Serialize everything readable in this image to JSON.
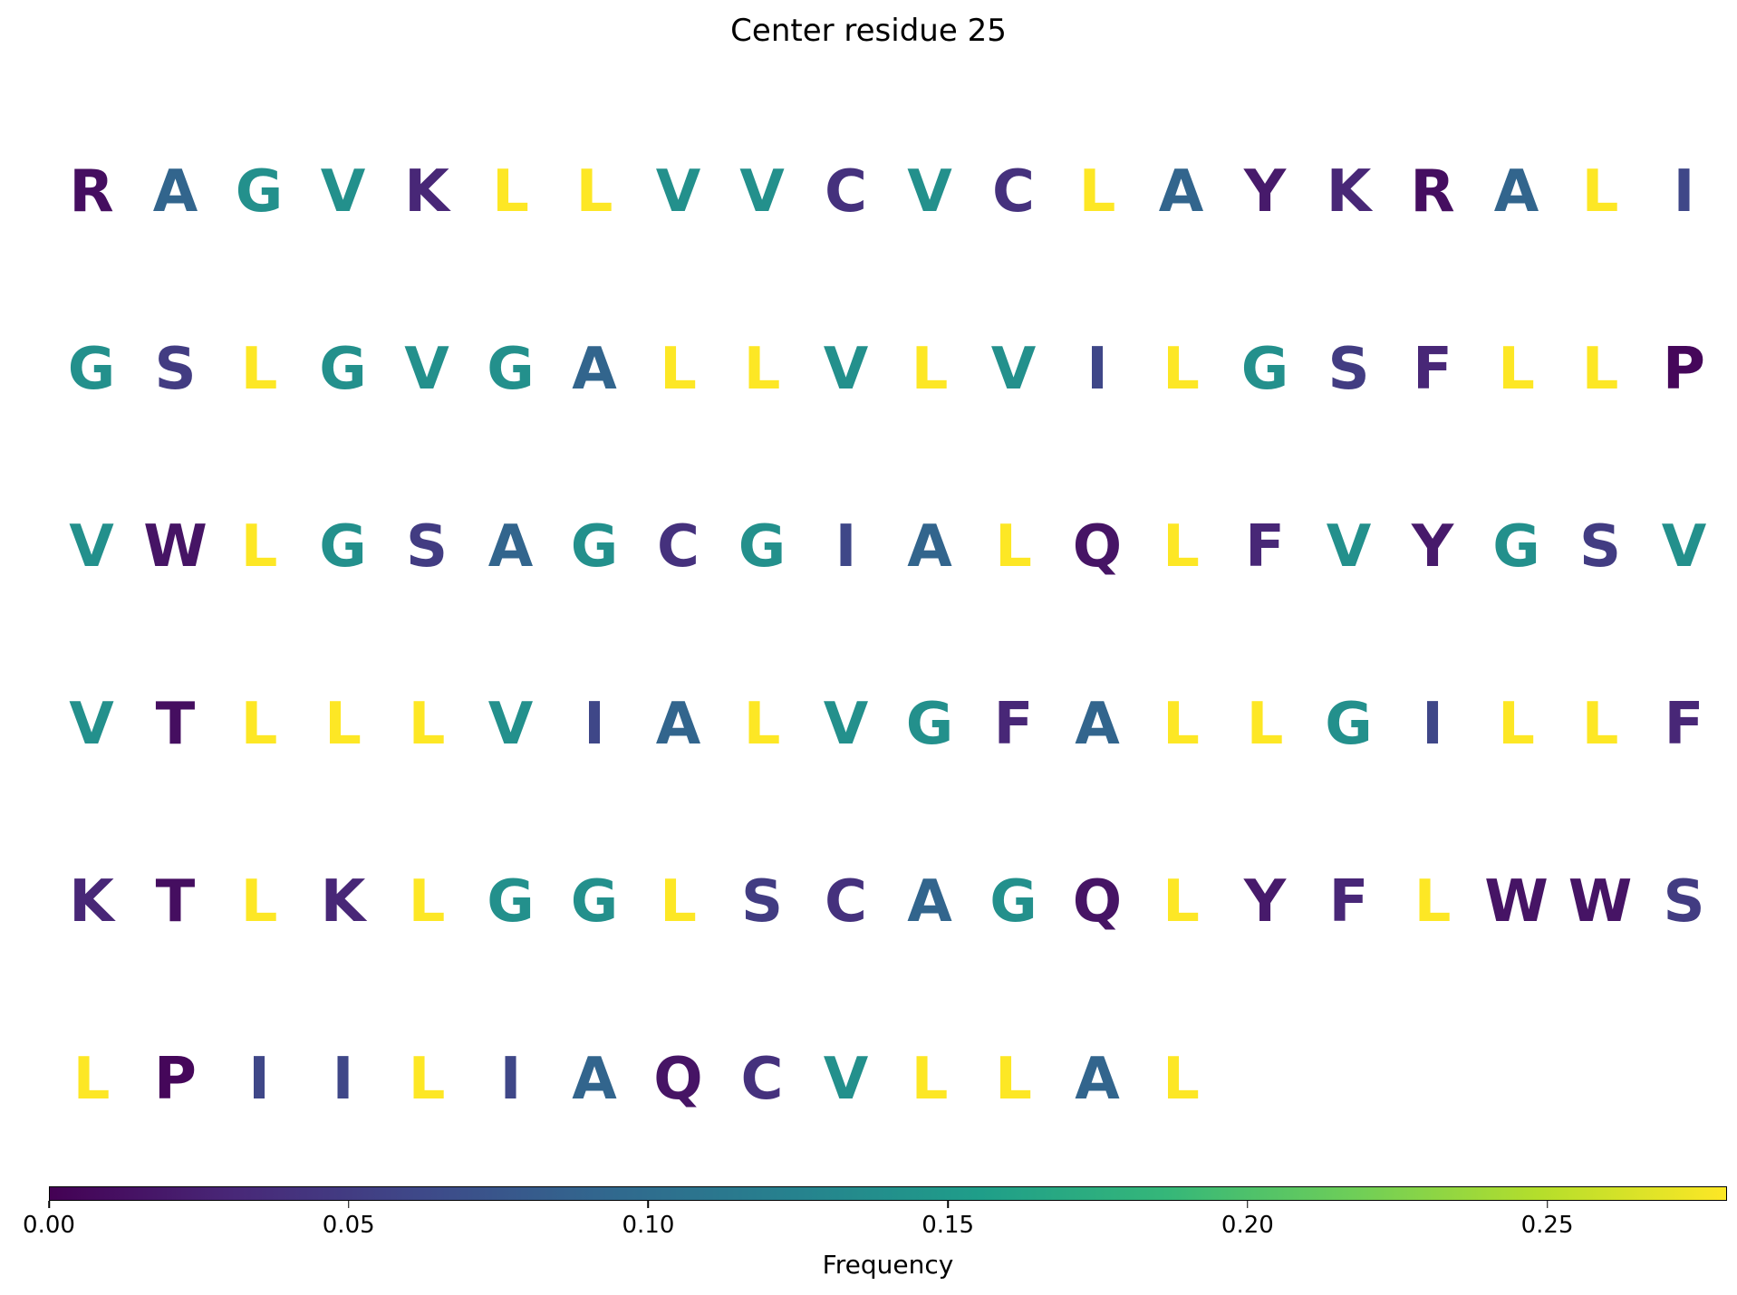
{
  "chart_data": {
    "type": "table",
    "title": "Center residue 25",
    "columns": 20,
    "residues": [
      {
        "aa": "R",
        "f": 0.01
      },
      {
        "aa": "A",
        "f": 0.09
      },
      {
        "aa": "G",
        "f": 0.14
      },
      {
        "aa": "V",
        "f": 0.14
      },
      {
        "aa": "K",
        "f": 0.03
      },
      {
        "aa": "L",
        "f": 0.28
      },
      {
        "aa": "L",
        "f": 0.28
      },
      {
        "aa": "V",
        "f": 0.14
      },
      {
        "aa": "V",
        "f": 0.14
      },
      {
        "aa": "C",
        "f": 0.04
      },
      {
        "aa": "V",
        "f": 0.14
      },
      {
        "aa": "C",
        "f": 0.04
      },
      {
        "aa": "L",
        "f": 0.28
      },
      {
        "aa": "A",
        "f": 0.09
      },
      {
        "aa": "Y",
        "f": 0.02
      },
      {
        "aa": "K",
        "f": 0.03
      },
      {
        "aa": "R",
        "f": 0.01
      },
      {
        "aa": "A",
        "f": 0.09
      },
      {
        "aa": "L",
        "f": 0.28
      },
      {
        "aa": "I",
        "f": 0.06
      },
      {
        "aa": "G",
        "f": 0.14
      },
      {
        "aa": "S",
        "f": 0.05
      },
      {
        "aa": "L",
        "f": 0.28
      },
      {
        "aa": "G",
        "f": 0.14
      },
      {
        "aa": "V",
        "f": 0.14
      },
      {
        "aa": "G",
        "f": 0.14
      },
      {
        "aa": "A",
        "f": 0.09
      },
      {
        "aa": "L",
        "f": 0.28
      },
      {
        "aa": "L",
        "f": 0.28
      },
      {
        "aa": "V",
        "f": 0.14
      },
      {
        "aa": "L",
        "f": 0.28
      },
      {
        "aa": "V",
        "f": 0.14
      },
      {
        "aa": "I",
        "f": 0.06
      },
      {
        "aa": "L",
        "f": 0.28
      },
      {
        "aa": "G",
        "f": 0.14
      },
      {
        "aa": "S",
        "f": 0.05
      },
      {
        "aa": "F",
        "f": 0.03
      },
      {
        "aa": "L",
        "f": 0.28
      },
      {
        "aa": "L",
        "f": 0.28
      },
      {
        "aa": "P",
        "f": 0.005
      },
      {
        "aa": "V",
        "f": 0.14
      },
      {
        "aa": "W",
        "f": 0.015
      },
      {
        "aa": "L",
        "f": 0.28
      },
      {
        "aa": "G",
        "f": 0.14
      },
      {
        "aa": "S",
        "f": 0.05
      },
      {
        "aa": "A",
        "f": 0.09
      },
      {
        "aa": "G",
        "f": 0.14
      },
      {
        "aa": "C",
        "f": 0.04
      },
      {
        "aa": "G",
        "f": 0.14
      },
      {
        "aa": "I",
        "f": 0.06
      },
      {
        "aa": "A",
        "f": 0.09
      },
      {
        "aa": "L",
        "f": 0.28
      },
      {
        "aa": "Q",
        "f": 0.015
      },
      {
        "aa": "L",
        "f": 0.28
      },
      {
        "aa": "F",
        "f": 0.03
      },
      {
        "aa": "V",
        "f": 0.14
      },
      {
        "aa": "Y",
        "f": 0.02
      },
      {
        "aa": "G",
        "f": 0.14
      },
      {
        "aa": "S",
        "f": 0.05
      },
      {
        "aa": "V",
        "f": 0.14
      },
      {
        "aa": "V",
        "f": 0.14
      },
      {
        "aa": "T",
        "f": 0.01
      },
      {
        "aa": "L",
        "f": 0.28
      },
      {
        "aa": "L",
        "f": 0.28
      },
      {
        "aa": "L",
        "f": 0.28
      },
      {
        "aa": "V",
        "f": 0.14
      },
      {
        "aa": "I",
        "f": 0.06
      },
      {
        "aa": "A",
        "f": 0.09
      },
      {
        "aa": "L",
        "f": 0.28
      },
      {
        "aa": "V",
        "f": 0.14
      },
      {
        "aa": "G",
        "f": 0.14
      },
      {
        "aa": "F",
        "f": 0.03
      },
      {
        "aa": "A",
        "f": 0.09
      },
      {
        "aa": "L",
        "f": 0.28
      },
      {
        "aa": "L",
        "f": 0.28
      },
      {
        "aa": "G",
        "f": 0.14
      },
      {
        "aa": "I",
        "f": 0.06
      },
      {
        "aa": "L",
        "f": 0.28
      },
      {
        "aa": "L",
        "f": 0.28
      },
      {
        "aa": "F",
        "f": 0.03
      },
      {
        "aa": "K",
        "f": 0.03
      },
      {
        "aa": "T",
        "f": 0.01
      },
      {
        "aa": "L",
        "f": 0.28
      },
      {
        "aa": "K",
        "f": 0.03
      },
      {
        "aa": "L",
        "f": 0.28
      },
      {
        "aa": "G",
        "f": 0.14
      },
      {
        "aa": "G",
        "f": 0.14
      },
      {
        "aa": "L",
        "f": 0.28
      },
      {
        "aa": "S",
        "f": 0.05
      },
      {
        "aa": "C",
        "f": 0.04
      },
      {
        "aa": "A",
        "f": 0.09
      },
      {
        "aa": "G",
        "f": 0.14
      },
      {
        "aa": "Q",
        "f": 0.015
      },
      {
        "aa": "L",
        "f": 0.28
      },
      {
        "aa": "Y",
        "f": 0.02
      },
      {
        "aa": "F",
        "f": 0.03
      },
      {
        "aa": "L",
        "f": 0.28
      },
      {
        "aa": "W",
        "f": 0.015
      },
      {
        "aa": "W",
        "f": 0.015
      },
      {
        "aa": "S",
        "f": 0.05
      },
      {
        "aa": "L",
        "f": 0.28
      },
      {
        "aa": "P",
        "f": 0.005
      },
      {
        "aa": "I",
        "f": 0.06
      },
      {
        "aa": "I",
        "f": 0.06
      },
      {
        "aa": "L",
        "f": 0.28
      },
      {
        "aa": "I",
        "f": 0.06
      },
      {
        "aa": "A",
        "f": 0.09
      },
      {
        "aa": "Q",
        "f": 0.015
      },
      {
        "aa": "C",
        "f": 0.04
      },
      {
        "aa": "V",
        "f": 0.14
      },
      {
        "aa": "L",
        "f": 0.28
      },
      {
        "aa": "L",
        "f": 0.28
      },
      {
        "aa": "A",
        "f": 0.09
      },
      {
        "aa": "L",
        "f": 0.28
      }
    ],
    "colorbar": {
      "label": "Frequency",
      "range": [
        0,
        0.28
      ],
      "colormap": "viridis",
      "ticks": [
        0.0,
        0.05,
        0.1,
        0.15,
        0.2,
        0.25
      ],
      "tick_labels": [
        "0.00",
        "0.05",
        "0.10",
        "0.15",
        "0.20",
        "0.25"
      ]
    }
  }
}
